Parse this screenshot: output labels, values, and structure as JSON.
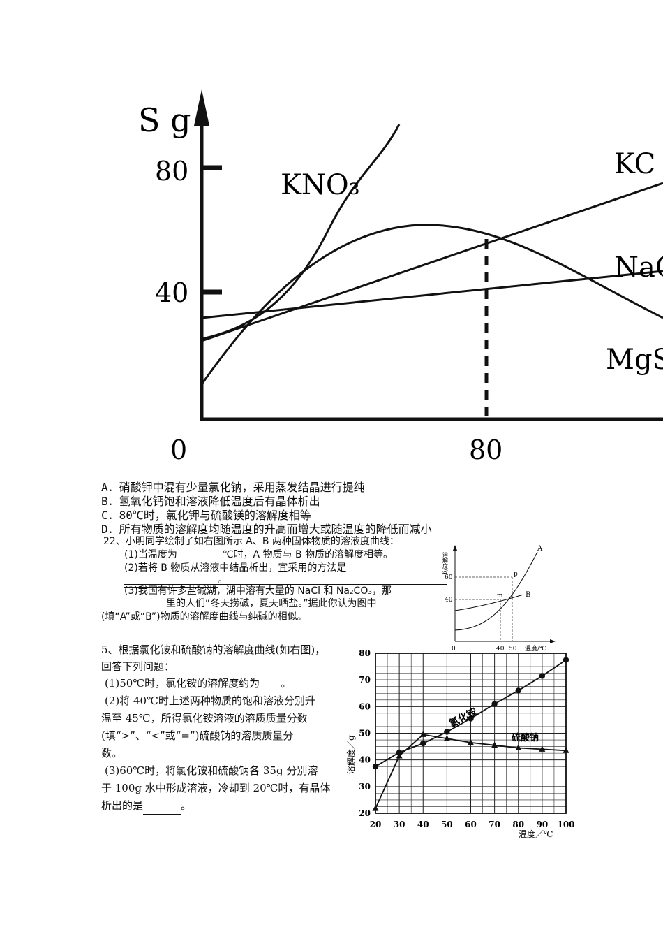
{
  "fig1": {
    "y_axis_label": "S g",
    "y_ticks": [
      "80",
      "40"
    ],
    "x_ticks": [
      "0",
      "80"
    ],
    "curve_labels": [
      "KNO₃",
      "KC",
      "NaC",
      "MgS"
    ]
  },
  "options": [
    "A．硝酸钾中混有少量氯化钠，采用蒸发结晶进行提纯",
    "B．氢氧化钙饱和溶液降低温度后有晶体析出",
    "C．80℃时，氯化钾与硫酸镁的溶解度相等",
    "D．所有物质的溶解度均随温度的升高而增大或随温度的降低而减小"
  ],
  "q22": {
    "stem": "22、小明同学绘制了如右图所示 A、B 两种固体物质的溶液度曲线：",
    "p1_prefix": "(1)当温度为",
    "p1_suffix": "℃时，A 物质与 B 物质的溶解度相等。",
    "p2": "(2)若将 B 物质从溶液中结晶析出，宜采用的方法是",
    "p2_end": "。",
    "p3": "(3)我国有许多盐碱湖，湖中溶有大量的 NaCl 和 Na₂CO₃，那",
    "p3_line2": "里的人们“冬天捞碱，夏天晒盐。”据此你认为图中",
    "p3_line3": "(填“A”或“B”)物质的溶解度曲线与纯碱的相似。"
  },
  "fig2": {
    "y_label": "溶解度/g",
    "x_label": "温度/℃",
    "y_ticks": [
      "60",
      "40"
    ],
    "x_ticks": [
      "0",
      "40",
      "50"
    ],
    "curve_labels": [
      "A",
      "B"
    ],
    "point_labels": [
      "p",
      "m"
    ]
  },
  "q5": {
    "line1": "5、根据氯化铵和硫酸钠的溶解度曲线(如右图)，",
    "line2": "回答下列问题：",
    "p1": "(1)50℃时，氯化铵的溶解度约为",
    "p1_end": "。",
    "p2_l1": "(2)将 40℃时上述两种物质的饱和溶液分别升",
    "p2_l2": "温至 45℃，所得氯化铵溶液的溶质质量分数",
    "p2_l3": "(填“>”、“<”或“=”)硫酸钠的溶质质量分",
    "p2_l4": "数。",
    "p3_l1": "(3)60℃时，将氯化铵和硫酸钠各 35g 分别溶",
    "p3_l2": "于 100g 水中形成溶液，冷却到 20℃时，有晶体",
    "p3_l3": "析出的是",
    "p3_end": "。"
  },
  "chart_data": {
    "type": "line",
    "x": [
      20,
      30,
      40,
      50,
      60,
      70,
      80,
      90,
      100
    ],
    "series": [
      {
        "name": "氯化铵",
        "values": [
          37.5,
          42.8,
          46.2,
          50.5,
          55.5,
          61,
          66,
          71.5,
          77.5
        ]
      },
      {
        "name": "硫酸钠",
        "values": [
          21.8,
          41.5,
          49.5,
          48,
          46.5,
          45.5,
          44.5,
          44,
          43.5
        ]
      }
    ],
    "xlabel": "温度／℃",
    "ylabel": "溶解度／g",
    "xlim": [
      20,
      100
    ],
    "ylim": [
      20,
      80
    ],
    "x_ticks": [
      "20",
      "30",
      "40",
      "50",
      "60",
      "70",
      "80",
      "90",
      "100"
    ],
    "y_ticks": [
      "20",
      "30",
      "40",
      "50",
      "60",
      "70",
      "80"
    ],
    "grid": true
  }
}
